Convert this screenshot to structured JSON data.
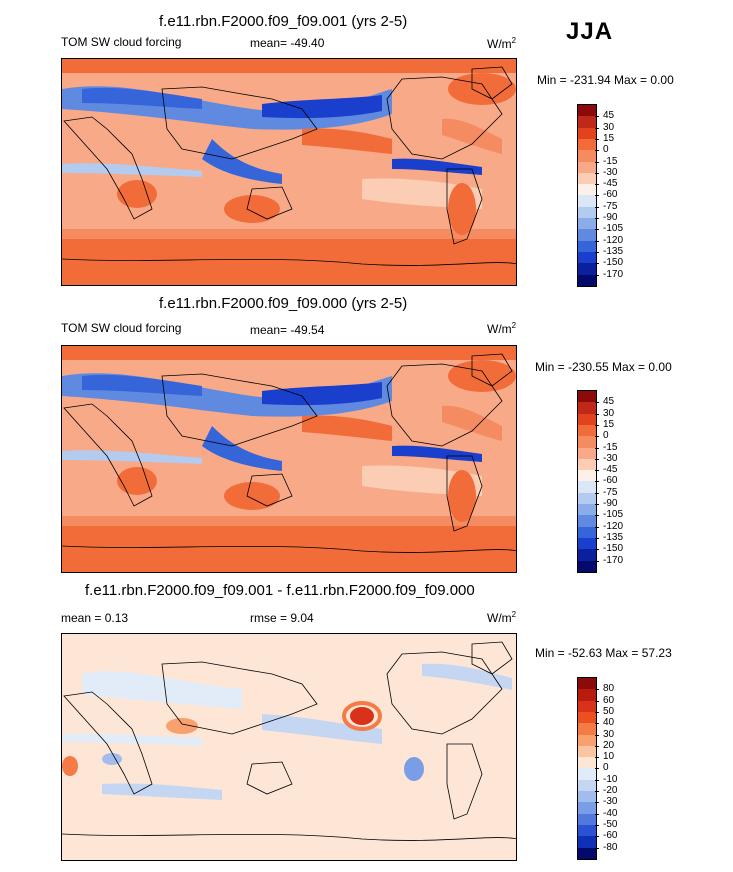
{
  "season": "JJA",
  "panels": [
    {
      "title": "f.e11.rbn.F2000.f09_f09.001 (yrs 2-5)",
      "left_label": "TOM SW cloud forcing",
      "mean_label": "mean= -49.40",
      "units": "W/m",
      "units_sup": "2",
      "minmax": "Min = -231.94 Max =   0.00",
      "levels": [
        "45",
        "30",
        "15",
        "0",
        "-15",
        "-30",
        "-45",
        "-60",
        "-75",
        "-90",
        "-105",
        "-120",
        "-135",
        "-150",
        "-170"
      ],
      "colors": [
        "#8b0a0a",
        "#c0281a",
        "#e2431d",
        "#f26c3a",
        "#f58b60",
        "#f8aa88",
        "#fbcdb4",
        "#fdf0e8",
        "#dbe6f6",
        "#b3cbef",
        "#8aadea",
        "#5f8ae0",
        "#3565d8",
        "#1a3fcc",
        "#0c1f9c",
        "#040a6b"
      ]
    },
    {
      "title": "f.e11.rbn.F2000.f09_f09.000 (yrs 2-5)",
      "left_label": "TOM SW cloud forcing",
      "mean_label": "mean= -49.54",
      "units": "W/m",
      "units_sup": "2",
      "minmax": "Min = -230.55 Max =   0.00",
      "levels": [
        "45",
        "30",
        "15",
        "0",
        "-15",
        "-30",
        "-45",
        "-60",
        "-75",
        "-90",
        "-105",
        "-120",
        "-135",
        "-150",
        "-170"
      ],
      "colors": [
        "#8b0a0a",
        "#c0281a",
        "#e2431d",
        "#f26c3a",
        "#f58b60",
        "#f8aa88",
        "#fbcdb4",
        "#fdf0e8",
        "#dbe6f6",
        "#b3cbef",
        "#8aadea",
        "#5f8ae0",
        "#3565d8",
        "#1a3fcc",
        "#0c1f9c",
        "#040a6b"
      ]
    },
    {
      "title": "f.e11.rbn.F2000.f09_f09.001 - f.e11.rbn.F2000.f09_f09.000",
      "left_label": "mean =   0.13",
      "mean_label": "rmse =   9.04",
      "units": "W/m",
      "units_sup": "2",
      "minmax": "Min = -52.63 Max =  57.23",
      "levels": [
        "80",
        "60",
        "50",
        "40",
        "30",
        "20",
        "10",
        "0",
        "-10",
        "-20",
        "-30",
        "-40",
        "-50",
        "-60",
        "-80"
      ],
      "colors": [
        "#8b0a0a",
        "#b81c10",
        "#d8321a",
        "#ec5020",
        "#f47a46",
        "#f8a06e",
        "#fbc4a2",
        "#fde6d6",
        "#e2ecf8",
        "#c4d6f2",
        "#a2bced",
        "#7a9ee6",
        "#5078dd",
        "#2a52d2",
        "#1030b8",
        "#040a6b"
      ]
    }
  ],
  "chart_data": [
    {
      "type": "heatmap",
      "title": "f.e11.rbn.F2000.f09_f09.001 (yrs 2-5)",
      "variable": "TOM SW cloud forcing",
      "season": "JJA",
      "mean": -49.4,
      "min": -231.94,
      "max": 0.0,
      "units": "W/m2",
      "contour_levels": [
        45,
        30,
        15,
        0,
        -15,
        -30,
        -45,
        -60,
        -75,
        -90,
        -105,
        -120,
        -135,
        -150,
        -170
      ]
    },
    {
      "type": "heatmap",
      "title": "f.e11.rbn.F2000.f09_f09.000 (yrs 2-5)",
      "variable": "TOM SW cloud forcing",
      "season": "JJA",
      "mean": -49.54,
      "min": -230.55,
      "max": 0.0,
      "units": "W/m2",
      "contour_levels": [
        45,
        30,
        15,
        0,
        -15,
        -30,
        -45,
        -60,
        -75,
        -90,
        -105,
        -120,
        -135,
        -150,
        -170
      ]
    },
    {
      "type": "heatmap",
      "title": "f.e11.rbn.F2000.f09_f09.001 - f.e11.rbn.F2000.f09_f09.000",
      "season": "JJA",
      "mean": 0.13,
      "rmse": 9.04,
      "min": -52.63,
      "max": 57.23,
      "units": "W/m2",
      "contour_levels": [
        80,
        60,
        50,
        40,
        30,
        20,
        10,
        0,
        -10,
        -20,
        -30,
        -40,
        -50,
        -60,
        -80
      ]
    }
  ]
}
